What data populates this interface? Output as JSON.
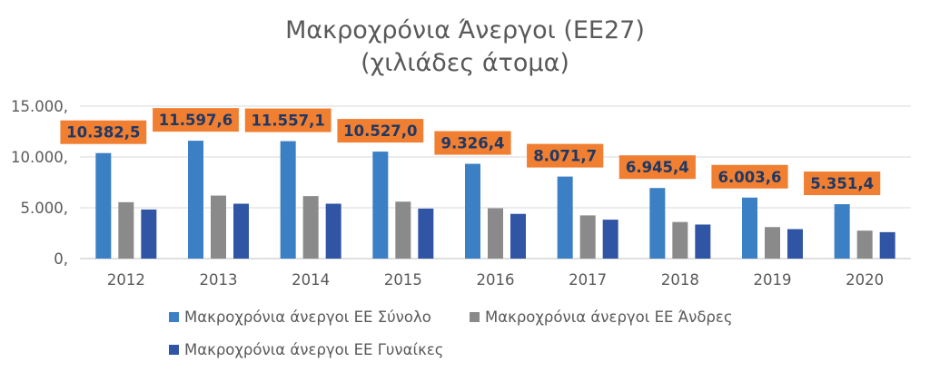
{
  "chart_data": {
    "type": "bar",
    "title": "Μακροχρόνια Άνεργοι (ΕΕ27)",
    "subtitle": "(χιλιάδες άτομα)",
    "categories": [
      "2012",
      "2013",
      "2014",
      "2015",
      "2016",
      "2017",
      "2018",
      "2019",
      "2020"
    ],
    "series": [
      {
        "name": "Μακροχρόνια άνεργοι ΕΕ Σύνολο",
        "color": "#3B7FC4",
        "values": [
          10382.5,
          11597.6,
          11557.1,
          10527.0,
          9326.4,
          8071.7,
          6945.4,
          6003.6,
          5351.4
        ]
      },
      {
        "name": "Μακροχρόνια άνεργοι ΕΕ Άνδρες",
        "color": "#8A8A8A",
        "values": [
          5550,
          6200,
          6150,
          5600,
          4950,
          4250,
          3600,
          3100,
          2750
        ]
      },
      {
        "name": "Μακροχρόνια άνεργοι ΕΕ Γυναίκες",
        "color": "#2F55A4",
        "values": [
          4830,
          5400,
          5400,
          4920,
          4400,
          3830,
          3350,
          2900,
          2600
        ]
      }
    ],
    "data_labels": [
      "10.382,5",
      "11.597,6",
      "11.557,1",
      "10.527,0",
      "9.326,4",
      "8.071,7",
      "6.945,4",
      "6.003,6",
      "5.351,4"
    ],
    "label_style": {
      "background": "#F07F32",
      "text_color": "#1F3864"
    },
    "yticks": [
      "0,",
      "5.000,",
      "10.000,",
      "15.000,"
    ],
    "ytick_values": [
      0,
      5000,
      10000,
      15000
    ],
    "ylim": [
      0,
      15000
    ],
    "grid": true,
    "legend_position": "bottom"
  }
}
